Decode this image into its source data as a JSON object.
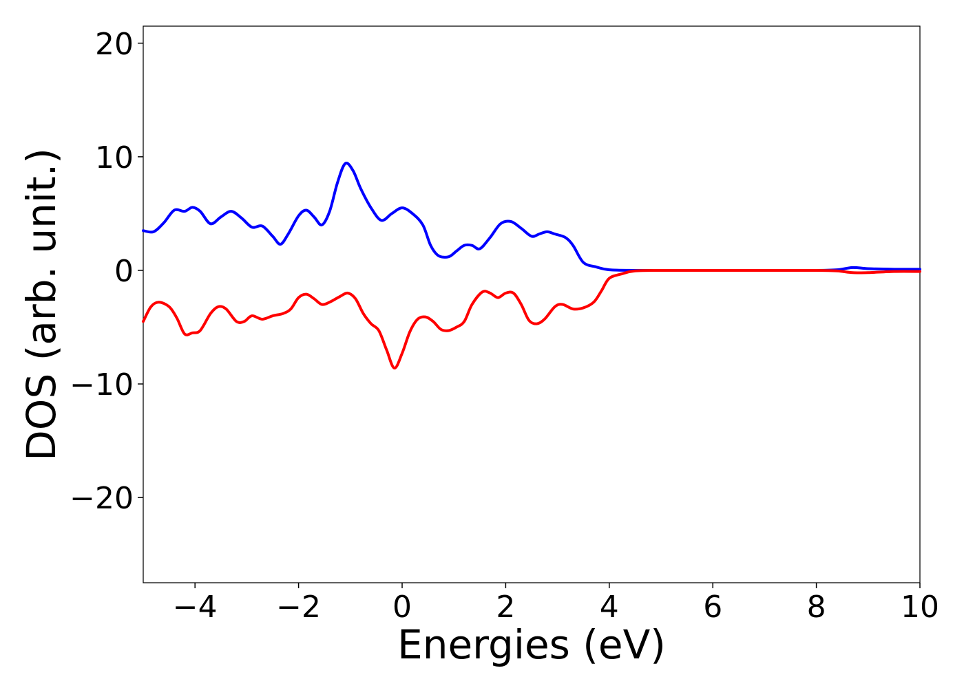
{
  "chart_data": {
    "type": "line",
    "title": "",
    "xlabel": "Energies (eV)",
    "ylabel": "DOS (arb. unit.)",
    "xlim": [
      -5,
      10
    ],
    "ylim": [
      -27.5,
      21.5
    ],
    "xticks": [
      -4,
      -2,
      0,
      2,
      4,
      6,
      8,
      10
    ],
    "xtick_labels": [
      "−4",
      "−2",
      "0",
      "2",
      "4",
      "6",
      "8",
      "10"
    ],
    "yticks": [
      20,
      10,
      0,
      -10,
      -20
    ],
    "ytick_labels": [
      "20",
      "10",
      "0",
      "−10",
      "−20"
    ],
    "grid": false,
    "legend": "none",
    "series": [
      {
        "color": "#0000ff",
        "points": [
          [
            -5.0,
            3.5
          ],
          [
            -4.8,
            3.4
          ],
          [
            -4.6,
            4.2
          ],
          [
            -4.4,
            5.3
          ],
          [
            -4.2,
            5.2
          ],
          [
            -4.05,
            5.55
          ],
          [
            -3.9,
            5.2
          ],
          [
            -3.7,
            4.1
          ],
          [
            -3.5,
            4.7
          ],
          [
            -3.3,
            5.2
          ],
          [
            -3.1,
            4.6
          ],
          [
            -2.9,
            3.8
          ],
          [
            -2.7,
            3.9
          ],
          [
            -2.5,
            3.0
          ],
          [
            -2.35,
            2.3
          ],
          [
            -2.2,
            3.2
          ],
          [
            -2.0,
            4.8
          ],
          [
            -1.85,
            5.3
          ],
          [
            -1.7,
            4.7
          ],
          [
            -1.55,
            4.0
          ],
          [
            -1.4,
            5.2
          ],
          [
            -1.25,
            7.7
          ],
          [
            -1.1,
            9.4
          ],
          [
            -0.95,
            8.8
          ],
          [
            -0.8,
            7.2
          ],
          [
            -0.6,
            5.5
          ],
          [
            -0.4,
            4.4
          ],
          [
            -0.2,
            5.0
          ],
          [
            0.0,
            5.5
          ],
          [
            0.2,
            5.0
          ],
          [
            0.4,
            4.0
          ],
          [
            0.55,
            2.2
          ],
          [
            0.7,
            1.3
          ],
          [
            0.9,
            1.2
          ],
          [
            1.05,
            1.7
          ],
          [
            1.2,
            2.2
          ],
          [
            1.35,
            2.2
          ],
          [
            1.5,
            1.9
          ],
          [
            1.7,
            2.9
          ],
          [
            1.9,
            4.1
          ],
          [
            2.1,
            4.3
          ],
          [
            2.3,
            3.7
          ],
          [
            2.5,
            3.0
          ],
          [
            2.65,
            3.2
          ],
          [
            2.8,
            3.4
          ],
          [
            2.95,
            3.2
          ],
          [
            3.15,
            2.9
          ],
          [
            3.3,
            2.2
          ],
          [
            3.5,
            0.7
          ],
          [
            3.75,
            0.3
          ],
          [
            4.0,
            0.05
          ],
          [
            4.5,
            0.0
          ],
          [
            5.0,
            0.0
          ],
          [
            6.0,
            0.0
          ],
          [
            7.0,
            0.0
          ],
          [
            8.0,
            0.0
          ],
          [
            8.4,
            0.05
          ],
          [
            8.7,
            0.25
          ],
          [
            9.0,
            0.15
          ],
          [
            9.5,
            0.1
          ],
          [
            10.0,
            0.1
          ]
        ]
      },
      {
        "color": "#ff0000",
        "points": [
          [
            -5.0,
            -4.5
          ],
          [
            -4.85,
            -3.2
          ],
          [
            -4.7,
            -2.8
          ],
          [
            -4.5,
            -3.2
          ],
          [
            -4.35,
            -4.2
          ],
          [
            -4.2,
            -5.6
          ],
          [
            -4.05,
            -5.5
          ],
          [
            -3.9,
            -5.3
          ],
          [
            -3.7,
            -3.8
          ],
          [
            -3.55,
            -3.2
          ],
          [
            -3.4,
            -3.4
          ],
          [
            -3.2,
            -4.5
          ],
          [
            -3.05,
            -4.5
          ],
          [
            -2.9,
            -4.0
          ],
          [
            -2.7,
            -4.3
          ],
          [
            -2.5,
            -4.0
          ],
          [
            -2.3,
            -3.8
          ],
          [
            -2.15,
            -3.4
          ],
          [
            -2.0,
            -2.4
          ],
          [
            -1.85,
            -2.1
          ],
          [
            -1.7,
            -2.5
          ],
          [
            -1.55,
            -3.0
          ],
          [
            -1.4,
            -2.8
          ],
          [
            -1.2,
            -2.3
          ],
          [
            -1.05,
            -2.0
          ],
          [
            -0.9,
            -2.5
          ],
          [
            -0.75,
            -3.8
          ],
          [
            -0.6,
            -4.7
          ],
          [
            -0.45,
            -5.3
          ],
          [
            -0.3,
            -7.0
          ],
          [
            -0.15,
            -8.6
          ],
          [
            0.0,
            -7.3
          ],
          [
            0.15,
            -5.4
          ],
          [
            0.3,
            -4.3
          ],
          [
            0.45,
            -4.1
          ],
          [
            0.6,
            -4.5
          ],
          [
            0.75,
            -5.2
          ],
          [
            0.9,
            -5.3
          ],
          [
            1.05,
            -5.0
          ],
          [
            1.2,
            -4.5
          ],
          [
            1.35,
            -3.0
          ],
          [
            1.55,
            -1.9
          ],
          [
            1.7,
            -2.0
          ],
          [
            1.85,
            -2.4
          ],
          [
            2.0,
            -2.0
          ],
          [
            2.15,
            -2.0
          ],
          [
            2.3,
            -3.0
          ],
          [
            2.45,
            -4.4
          ],
          [
            2.6,
            -4.7
          ],
          [
            2.75,
            -4.3
          ],
          [
            2.95,
            -3.2
          ],
          [
            3.1,
            -3.0
          ],
          [
            3.3,
            -3.4
          ],
          [
            3.5,
            -3.3
          ],
          [
            3.7,
            -2.8
          ],
          [
            3.85,
            -1.8
          ],
          [
            4.0,
            -0.7
          ],
          [
            4.25,
            -0.3
          ],
          [
            4.5,
            -0.05
          ],
          [
            5.0,
            0.0
          ],
          [
            6.0,
            0.0
          ],
          [
            7.0,
            0.0
          ],
          [
            8.0,
            0.0
          ],
          [
            8.4,
            -0.05
          ],
          [
            8.7,
            -0.2
          ],
          [
            9.0,
            -0.2
          ],
          [
            9.5,
            -0.1
          ],
          [
            10.0,
            -0.1
          ]
        ]
      }
    ]
  }
}
